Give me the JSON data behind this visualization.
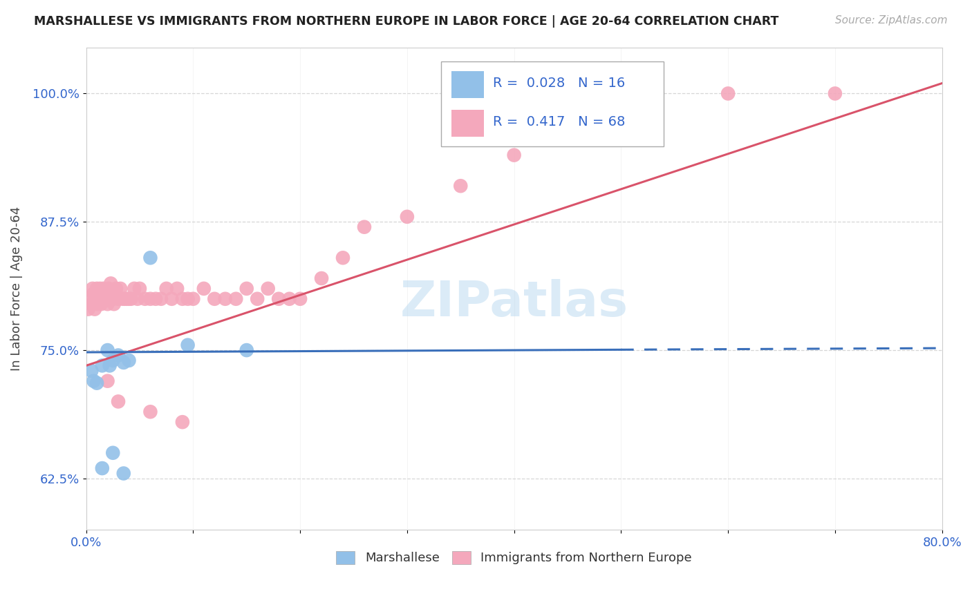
{
  "title": "MARSHALLESE VS IMMIGRANTS FROM NORTHERN EUROPE IN LABOR FORCE | AGE 20-64 CORRELATION CHART",
  "source": "Source: ZipAtlas.com",
  "ylabel": "In Labor Force | Age 20-64",
  "xlim": [
    0.0,
    0.8
  ],
  "ylim": [
    0.575,
    1.045
  ],
  "blue_color": "#92c0e8",
  "pink_color": "#f4a8bc",
  "line_blue_solid": "#3a6fba",
  "line_blue_dash": "#3a6fba",
  "line_pink": "#d9536a",
  "watermark": "ZIPatlas",
  "blue_scatter_x": [
    0.005,
    0.007,
    0.01,
    0.015,
    0.02,
    0.022,
    0.025,
    0.03,
    0.035,
    0.04,
    0.06,
    0.095,
    0.15,
    0.015,
    0.025,
    0.035
  ],
  "blue_scatter_y": [
    0.73,
    0.72,
    0.718,
    0.735,
    0.75,
    0.735,
    0.74,
    0.745,
    0.738,
    0.74,
    0.84,
    0.755,
    0.75,
    0.635,
    0.65,
    0.63
  ],
  "pink_scatter_x": [
    0.002,
    0.003,
    0.005,
    0.006,
    0.007,
    0.008,
    0.009,
    0.01,
    0.011,
    0.012,
    0.013,
    0.014,
    0.015,
    0.016,
    0.017,
    0.018,
    0.019,
    0.02,
    0.021,
    0.022,
    0.023,
    0.024,
    0.025,
    0.026,
    0.028,
    0.03,
    0.032,
    0.034,
    0.036,
    0.038,
    0.04,
    0.042,
    0.045,
    0.048,
    0.05,
    0.055,
    0.06,
    0.065,
    0.07,
    0.075,
    0.08,
    0.085,
    0.09,
    0.095,
    0.1,
    0.11,
    0.12,
    0.13,
    0.14,
    0.15,
    0.16,
    0.17,
    0.18,
    0.19,
    0.2,
    0.22,
    0.24,
    0.26,
    0.3,
    0.35,
    0.4,
    0.5,
    0.6,
    0.7,
    0.02,
    0.03,
    0.06,
    0.09
  ],
  "pink_scatter_y": [
    0.79,
    0.8,
    0.795,
    0.81,
    0.805,
    0.79,
    0.8,
    0.81,
    0.795,
    0.8,
    0.81,
    0.795,
    0.8,
    0.81,
    0.8,
    0.8,
    0.805,
    0.795,
    0.81,
    0.8,
    0.815,
    0.8,
    0.8,
    0.795,
    0.81,
    0.8,
    0.81,
    0.8,
    0.8,
    0.8,
    0.8,
    0.8,
    0.81,
    0.8,
    0.81,
    0.8,
    0.8,
    0.8,
    0.8,
    0.81,
    0.8,
    0.81,
    0.8,
    0.8,
    0.8,
    0.81,
    0.8,
    0.8,
    0.8,
    0.81,
    0.8,
    0.81,
    0.8,
    0.8,
    0.8,
    0.82,
    0.84,
    0.87,
    0.88,
    0.91,
    0.94,
    0.98,
    1.0,
    1.0,
    0.72,
    0.7,
    0.69,
    0.68
  ],
  "legend_entries": [
    {
      "color": "#92c0e8",
      "text_r": "R = 0.028",
      "text_n": "N = 16"
    },
    {
      "color": "#f4a8bc",
      "text_r": "R = 0.417",
      "text_n": "N = 68"
    }
  ],
  "ytick_vals": [
    0.625,
    0.75,
    0.875,
    1.0
  ],
  "ytick_labels": [
    "62.5%",
    "75.0%",
    "87.5%",
    "100.0%"
  ],
  "xtick_vals": [
    0.0,
    0.1,
    0.2,
    0.3,
    0.4,
    0.5,
    0.6,
    0.7,
    0.8
  ],
  "xtick_labels": [
    "0.0%",
    "",
    "",
    "",
    "",
    "",
    "",
    "",
    "80.0%"
  ],
  "bottom_legend": [
    {
      "color": "#92c0e8",
      "label": "Marshallese"
    },
    {
      "color": "#f4a8bc",
      "label": "Immigrants from Northern Europe"
    }
  ]
}
